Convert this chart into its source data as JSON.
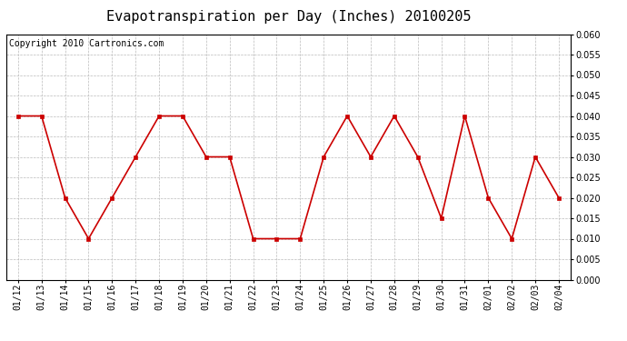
{
  "title": "Evapotranspiration per Day (Inches) 20100205",
  "copyright_text": "Copyright 2010 Cartronics.com",
  "dates": [
    "01/12",
    "01/13",
    "01/14",
    "01/15",
    "01/16",
    "01/17",
    "01/18",
    "01/19",
    "01/20",
    "01/21",
    "01/22",
    "01/23",
    "01/24",
    "01/25",
    "01/26",
    "01/27",
    "01/28",
    "01/29",
    "01/30",
    "01/31",
    "02/01",
    "02/02",
    "02/03",
    "02/04"
  ],
  "values": [
    0.04,
    0.04,
    0.02,
    0.01,
    0.02,
    0.03,
    0.04,
    0.04,
    0.03,
    0.03,
    0.01,
    0.01,
    0.01,
    0.03,
    0.04,
    0.03,
    0.04,
    0.03,
    0.015,
    0.04,
    0.02,
    0.01,
    0.03,
    0.02
  ],
  "line_color": "#cc0000",
  "marker": "s",
  "marker_size": 3,
  "ylim": [
    0.0,
    0.06
  ],
  "ytick_interval": 0.005,
  "background_color": "#ffffff",
  "plot_bg_color": "#ffffff",
  "grid_color": "#bbbbbb",
  "title_fontsize": 11,
  "copyright_fontsize": 7,
  "tick_fontsize": 7,
  "ytick_fontsize": 7
}
